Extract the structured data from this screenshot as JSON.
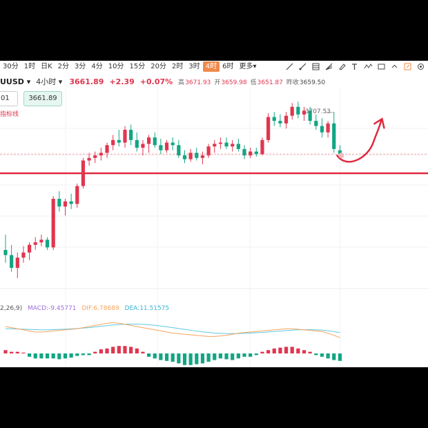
{
  "toolbar": {
    "timeframes": [
      "30分",
      "1时",
      "日K",
      "2分",
      "3分",
      "4分",
      "10分",
      "15分",
      "20分",
      "2时",
      "3时",
      "4时",
      "6时",
      "更多"
    ],
    "active_index": 11
  },
  "quote": {
    "symbol": "UUSD",
    "period": "4小时",
    "last": "3661.89",
    "change": "+2.39",
    "change_pct": "+0.07%",
    "high_label": "高",
    "high": "3671.93",
    "open_label": "开",
    "open": "3659.98",
    "low_label": "低",
    "low": "3651.87",
    "prev_label": "昨收",
    "prev": "3659.50"
  },
  "input_value": "01",
  "price_box": "3661.89",
  "indicator_label": "指标线",
  "macd": {
    "params": "2,26,9)",
    "macd": "MACD:-9.45771",
    "dif": "DIF:6.78689",
    "dea": "DEA:11.51575"
  },
  "colors": {
    "up": "#e0364f",
    "down": "#13a583",
    "dif": "#f5a45b",
    "dea": "#5ec8e0",
    "support": "#e0283c",
    "accent": "#f0894a"
  },
  "chart_data": {
    "type": "candlestick",
    "annotation_high": "3707.53",
    "ohlc": [
      [
        3600,
        3612,
        3590,
        3596
      ],
      [
        3596,
        3604,
        3583,
        3586
      ],
      [
        3586,
        3598,
        3578,
        3594
      ],
      [
        3594,
        3603,
        3590,
        3598
      ],
      [
        3598,
        3606,
        3592,
        3604
      ],
      [
        3604,
        3610,
        3600,
        3606
      ],
      [
        3606,
        3612,
        3603,
        3608
      ],
      [
        3608,
        3610,
        3600,
        3602
      ],
      [
        3602,
        3642,
        3600,
        3640
      ],
      [
        3640,
        3646,
        3630,
        3634
      ],
      [
        3634,
        3640,
        3627,
        3638
      ],
      [
        3638,
        3644,
        3632,
        3636
      ],
      [
        3636,
        3652,
        3633,
        3650
      ],
      [
        3650,
        3672,
        3648,
        3670
      ],
      [
        3670,
        3676,
        3666,
        3672
      ],
      [
        3672,
        3677,
        3668,
        3674
      ],
      [
        3674,
        3680,
        3670,
        3676
      ],
      [
        3676,
        3684,
        3672,
        3682
      ],
      [
        3682,
        3690,
        3678,
        3686
      ],
      [
        3686,
        3694,
        3681,
        3684
      ],
      [
        3684,
        3697,
        3680,
        3694
      ],
      [
        3694,
        3698,
        3682,
        3686
      ],
      [
        3686,
        3692,
        3677,
        3680
      ],
      [
        3680,
        3686,
        3674,
        3683
      ],
      [
        3683,
        3690,
        3676,
        3688
      ],
      [
        3688,
        3692,
        3680,
        3682
      ],
      [
        3682,
        3687,
        3675,
        3678
      ],
      [
        3678,
        3686,
        3676,
        3684
      ],
      [
        3684,
        3688,
        3678,
        3682
      ],
      [
        3682,
        3686,
        3672,
        3674
      ],
      [
        3674,
        3678,
        3668,
        3671
      ],
      [
        3671,
        3679,
        3669,
        3676
      ],
      [
        3676,
        3680,
        3670,
        3672
      ],
      [
        3672,
        3677,
        3667,
        3674
      ],
      [
        3674,
        3683,
        3672,
        3681
      ],
      [
        3681,
        3686,
        3676,
        3683
      ],
      [
        3683,
        3688,
        3679,
        3684
      ],
      [
        3684,
        3688,
        3679,
        3681
      ],
      [
        3681,
        3686,
        3677,
        3683
      ],
      [
        3683,
        3687,
        3677,
        3679
      ],
      [
        3679,
        3682,
        3671,
        3674
      ],
      [
        3674,
        3680,
        3672,
        3677
      ],
      [
        3677,
        3680,
        3673,
        3675
      ],
      [
        3675,
        3688,
        3674,
        3686
      ],
      [
        3686,
        3707,
        3684,
        3704
      ],
      [
        3704,
        3708,
        3697,
        3701
      ],
      [
        3701,
        3706,
        3696,
        3699
      ],
      [
        3699,
        3708,
        3695,
        3705
      ],
      [
        3705,
        3715,
        3702,
        3712
      ],
      [
        3712,
        3716,
        3703,
        3706
      ],
      [
        3706,
        3712,
        3701,
        3709
      ],
      [
        3709,
        3712,
        3698,
        3701
      ],
      [
        3701,
        3706,
        3694,
        3697
      ],
      [
        3697,
        3703,
        3688,
        3692
      ],
      [
        3692,
        3701,
        3688,
        3699
      ],
      [
        3699,
        3708,
        3676,
        3679
      ],
      [
        3678,
        3682,
        3672,
        3675
      ]
    ],
    "support_level": 3660,
    "macd_hist": [
      2,
      1,
      1,
      0.5,
      -2,
      -3,
      -3,
      -3,
      -3,
      -3.5,
      -3,
      -2.5,
      -1.5,
      -1,
      -1,
      1,
      2.5,
      3,
      4,
      4.5,
      4.5,
      4,
      3,
      1,
      -2,
      -3,
      -4,
      -4.5,
      -5,
      -6,
      -7,
      -7,
      -6.5,
      -6,
      -5,
      -4,
      -3,
      -3.5,
      -4,
      -3,
      -2,
      -2,
      -1,
      1,
      2,
      3,
      3.5,
      4,
      4,
      3,
      2,
      1,
      -1,
      -2,
      -3,
      -4,
      -4.5
    ],
    "dif": [
      9,
      8,
      7,
      6,
      5,
      4,
      4,
      4.5,
      5,
      5.5,
      6,
      6.5,
      7,
      8,
      9,
      10,
      11,
      12,
      12.5,
      12,
      11,
      10,
      9,
      8,
      7,
      6,
      5,
      4,
      3,
      2.5,
      2,
      1.5,
      1,
      0.5,
      0,
      0,
      0.5,
      1,
      2,
      3,
      3.5,
      4,
      4.5,
      5,
      5.5,
      6,
      6.5,
      7,
      7,
      6.5,
      6,
      5.5,
      5,
      4.5,
      3,
      1,
      -1
    ],
    "dea": [
      7,
      7,
      6.8,
      6.6,
      6.4,
      6.2,
      6,
      6,
      6.2,
      6.4,
      6.6,
      6.9,
      7.2,
      7.6,
      8,
      8.6,
      9.2,
      9.8,
      10.4,
      10.8,
      11.1,
      11.2,
      11.2,
      11,
      10.6,
      10.1,
      9.5,
      8.8,
      8,
      7.2,
      6.4,
      5.6,
      4.9,
      4.2,
      3.6,
      3.1,
      2.8,
      2.6,
      2.6,
      2.7,
      2.9,
      3.1,
      3.4,
      3.7,
      4.1,
      4.5,
      4.9,
      5.3,
      5.7,
      6,
      6.1,
      6.1,
      6,
      5.7,
      5.2,
      4.5,
      3.5
    ]
  }
}
